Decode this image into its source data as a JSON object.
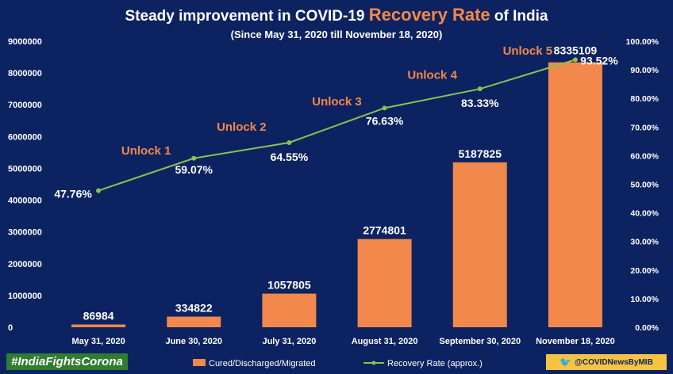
{
  "header": {
    "title_prefix": "Steady  improvement  in COVID-19",
    "title_accent": "Recovery Rate",
    "title_suffix": "of  India",
    "subtitle": "(Since  May 31, 2020  till  November 18, 2020)"
  },
  "footer": {
    "hashtag": "#IndiaFightsCorona",
    "handle": "@COVIDNewsByMIB",
    "twitter_icon": "twitter-bird-icon"
  },
  "colors": {
    "background": "#0d2361",
    "bar": "#f2884b",
    "line": "#8cc152",
    "unlock": "#f2884b",
    "hashtag_bg": "#2e7d32",
    "handle_bg": "#f6c342"
  },
  "chart_data": {
    "type": "bar",
    "categories": [
      "May 31, 2020",
      "June 30, 2020",
      "July 31, 2020",
      "August 31, 2020",
      "September 30, 2020",
      "November 18, 2020"
    ],
    "series": [
      {
        "name": "Cured/Discharged/Migrated",
        "type": "bar",
        "axis": "left",
        "values": [
          86984,
          334822,
          1057805,
          2774801,
          5187825,
          8335109
        ]
      },
      {
        "name": "Recovery Rate (approx.)",
        "type": "line",
        "axis": "right",
        "values": [
          47.76,
          59.07,
          64.55,
          76.63,
          83.33,
          93.52
        ]
      }
    ],
    "data_labels_bar": [
      "86984",
      "334822",
      "1057805",
      "2774801",
      "5187825",
      "8335109"
    ],
    "data_labels_line": [
      "47.76%",
      "59.07%",
      "64.55%",
      "76.63%",
      "83.33%",
      "93.52%"
    ],
    "ylim_left": [
      0,
      9000000
    ],
    "left_ticks": [
      0,
      1000000,
      2000000,
      3000000,
      4000000,
      5000000,
      6000000,
      7000000,
      8000000,
      9000000
    ],
    "ylim_right": [
      0,
      100
    ],
    "right_ticks": [
      "0.00%",
      "10.00%",
      "20.00%",
      "30.00%",
      "40.00%",
      "50.00%",
      "60.00%",
      "70.00%",
      "80.00%",
      "90.00%",
      "100.00%"
    ],
    "annotations": [
      "Unlock 1",
      "Unlock 2",
      "Unlock 3",
      "Unlock 4",
      "Unlock 5"
    ],
    "legend_position": "bottom",
    "grid": false
  }
}
